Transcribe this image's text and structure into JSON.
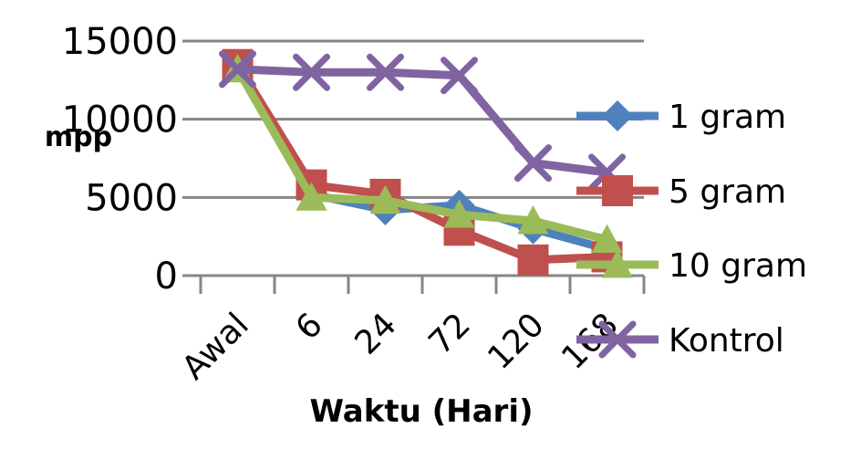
{
  "chart_data": {
    "type": "line",
    "title": "",
    "xlabel": "Waktu (Hari)",
    "ylabel": "mpp",
    "categories": [
      "Awal",
      "6",
      "24",
      "72",
      "120",
      "168"
    ],
    "ylim": [
      0,
      15000
    ],
    "yticks": [
      "0",
      "5000",
      "10000",
      "15000"
    ],
    "grid": true,
    "legend_position": "right",
    "series": [
      {
        "name": "1 gram",
        "color": "#4f81bd",
        "marker": "diamond",
        "values": [
          13500,
          5200,
          4200,
          4500,
          3000,
          1700
        ]
      },
      {
        "name": "5 gram",
        "color": "#c0504d",
        "marker": "square",
        "values": [
          13500,
          5800,
          5200,
          2900,
          1000,
          1200
        ]
      },
      {
        "name": "10 gram",
        "color": "#9bbb59",
        "marker": "triangle",
        "values": [
          13200,
          5000,
          4800,
          3900,
          3500,
          2300
        ]
      },
      {
        "name": "Kontrol",
        "color": "#8064a2",
        "marker": "x",
        "values": [
          13200,
          13000,
          13000,
          12800,
          7200,
          6600
        ]
      }
    ]
  }
}
